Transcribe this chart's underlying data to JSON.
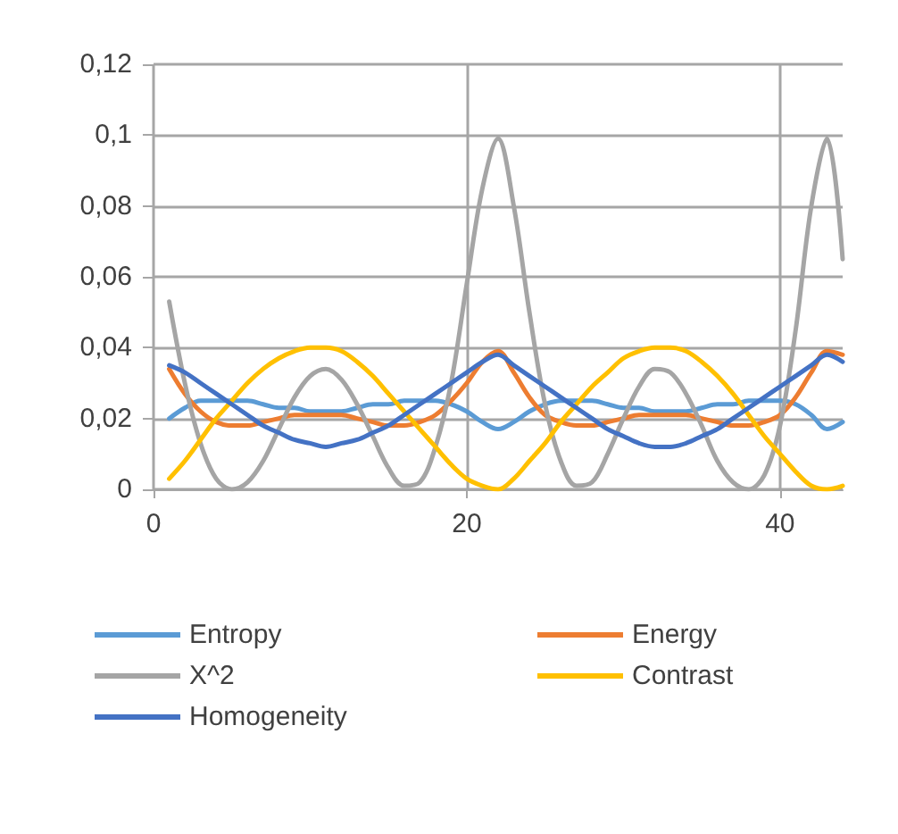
{
  "chart_data": {
    "type": "line",
    "x": [
      1,
      2,
      3,
      4,
      5,
      6,
      7,
      8,
      9,
      10,
      11,
      12,
      13,
      14,
      15,
      16,
      17,
      18,
      19,
      20,
      21,
      22,
      23,
      24,
      25,
      26,
      27,
      28,
      29,
      30,
      31,
      32,
      33,
      34,
      35,
      36,
      37,
      38,
      39,
      40,
      41,
      42,
      43,
      44
    ],
    "series": [
      {
        "name": "Entropy",
        "color": "#5b9bd5",
        "values": [
          0.02,
          0.023,
          0.025,
          0.025,
          0.025,
          0.025,
          0.024,
          0.023,
          0.023,
          0.022,
          0.022,
          0.022,
          0.023,
          0.024,
          0.024,
          0.025,
          0.025,
          0.025,
          0.024,
          0.022,
          0.019,
          0.017,
          0.019,
          0.022,
          0.024,
          0.025,
          0.025,
          0.025,
          0.024,
          0.023,
          0.023,
          0.022,
          0.022,
          0.022,
          0.023,
          0.024,
          0.024,
          0.025,
          0.025,
          0.025,
          0.024,
          0.021,
          0.017,
          0.019
        ]
      },
      {
        "name": "Energy",
        "color": "#ed7d31",
        "values": [
          0.034,
          0.027,
          0.022,
          0.019,
          0.018,
          0.018,
          0.019,
          0.02,
          0.021,
          0.021,
          0.021,
          0.021,
          0.02,
          0.019,
          0.018,
          0.018,
          0.019,
          0.021,
          0.025,
          0.03,
          0.036,
          0.039,
          0.033,
          0.026,
          0.021,
          0.019,
          0.018,
          0.018,
          0.019,
          0.02,
          0.021,
          0.021,
          0.021,
          0.021,
          0.02,
          0.019,
          0.018,
          0.018,
          0.019,
          0.021,
          0.026,
          0.033,
          0.039,
          0.038
        ]
      },
      {
        "name": "X^2",
        "color": "#a5a5a5",
        "values": [
          0.053,
          0.03,
          0.013,
          0.003,
          0,
          0.002,
          0.008,
          0.017,
          0.026,
          0.032,
          0.034,
          0.031,
          0.024,
          0.015,
          0.006,
          0.001,
          0.002,
          0.012,
          0.03,
          0.058,
          0.085,
          0.099,
          0.08,
          0.05,
          0.024,
          0.008,
          0.001,
          0.002,
          0.01,
          0.02,
          0.029,
          0.034,
          0.033,
          0.027,
          0.018,
          0.008,
          0.002,
          0,
          0.004,
          0.018,
          0.045,
          0.08,
          0.099,
          0.065
        ]
      },
      {
        "name": "Contrast",
        "color": "#ffc000",
        "values": [
          0.003,
          0.008,
          0.014,
          0.02,
          0.025,
          0.03,
          0.034,
          0.037,
          0.039,
          0.04,
          0.04,
          0.039,
          0.036,
          0.032,
          0.027,
          0.022,
          0.017,
          0.012,
          0.007,
          0.003,
          0.001,
          0,
          0.003,
          0.008,
          0.013,
          0.019,
          0.024,
          0.029,
          0.033,
          0.037,
          0.039,
          0.04,
          0.04,
          0.039,
          0.036,
          0.032,
          0.027,
          0.021,
          0.015,
          0.01,
          0.005,
          0.001,
          0,
          0.001
        ]
      },
      {
        "name": "Homogeneity",
        "color": "#4472c4",
        "values": [
          0.035,
          0.033,
          0.03,
          0.027,
          0.024,
          0.021,
          0.018,
          0.016,
          0.014,
          0.013,
          0.012,
          0.013,
          0.014,
          0.016,
          0.018,
          0.021,
          0.024,
          0.027,
          0.03,
          0.033,
          0.036,
          0.038,
          0.035,
          0.032,
          0.029,
          0.026,
          0.023,
          0.02,
          0.017,
          0.015,
          0.013,
          0.012,
          0.012,
          0.013,
          0.015,
          0.017,
          0.02,
          0.023,
          0.026,
          0.029,
          0.032,
          0.035,
          0.038,
          0.036
        ]
      }
    ],
    "xlim": [
      0,
      44
    ],
    "xticks": [
      0,
      20,
      40
    ],
    "ylim": [
      0,
      0.12
    ],
    "yticks": [
      {
        "value": 0,
        "label": "0"
      },
      {
        "value": 0.02,
        "label": "0,02"
      },
      {
        "value": 0.04,
        "label": "0,04"
      },
      {
        "value": 0.06,
        "label": "0,06"
      },
      {
        "value": 0.08,
        "label": "0,08"
      },
      {
        "value": 0.1,
        "label": "0,1"
      },
      {
        "value": 0.12,
        "label": "0,12"
      }
    ],
    "grid": true,
    "legend": "bottom",
    "marker": "none",
    "line_style": "solid"
  }
}
